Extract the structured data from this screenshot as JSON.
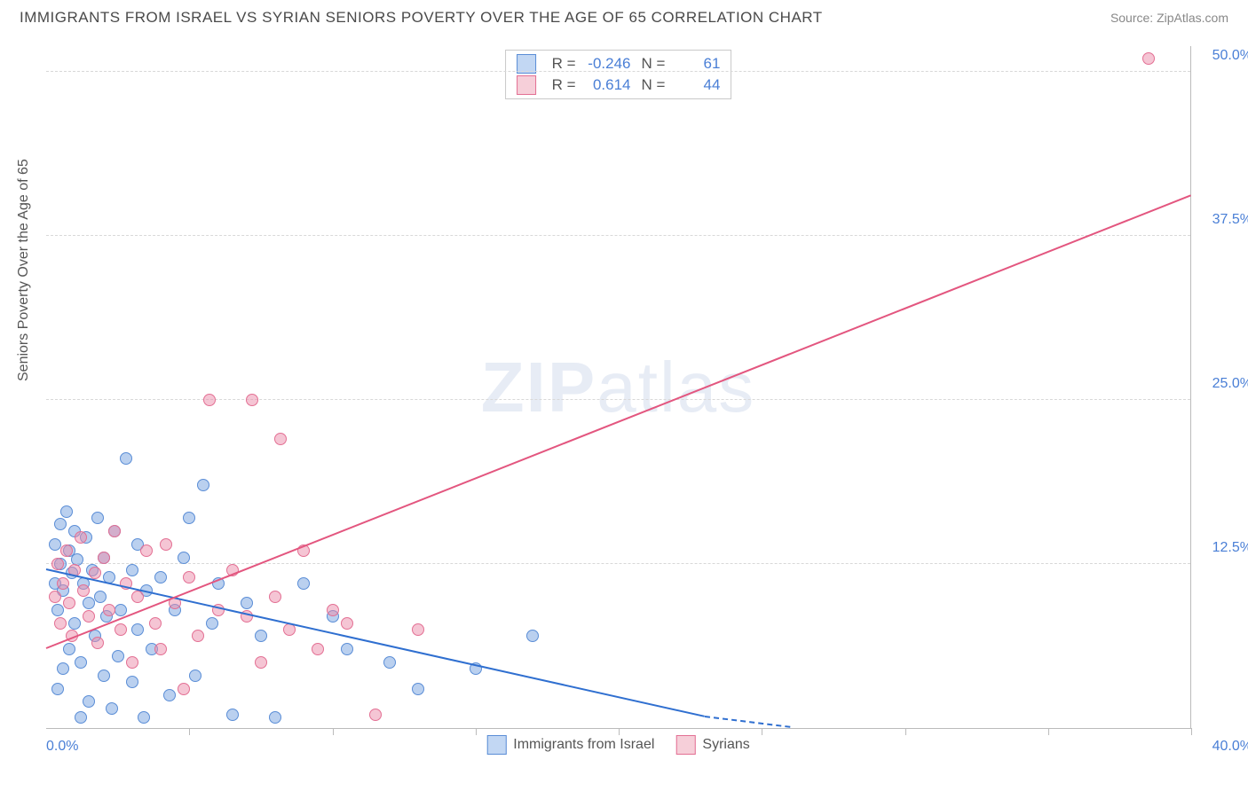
{
  "title": "IMMIGRANTS FROM ISRAEL VS SYRIAN SENIORS POVERTY OVER THE AGE OF 65 CORRELATION CHART",
  "source": "Source: ZipAtlas.com",
  "y_axis_title": "Seniors Poverty Over the Age of 65",
  "watermark_a": "ZIP",
  "watermark_b": "atlas",
  "chart": {
    "background": "#ffffff",
    "grid_color": "#d8d8d8",
    "axis_color": "#bbbbbb",
    "label_color": "#4a7fd6",
    "xlim": [
      0,
      40
    ],
    "ylim": [
      0,
      52
    ],
    "x_min_label": "0.0%",
    "x_max_label": "40.0%",
    "y_ticks": [
      {
        "v": 12.5,
        "label": "12.5%"
      },
      {
        "v": 25.0,
        "label": "25.0%"
      },
      {
        "v": 37.5,
        "label": "37.5%"
      },
      {
        "v": 50.0,
        "label": "50.0%"
      }
    ],
    "x_tick_positions": [
      5,
      10,
      15,
      20,
      25,
      30,
      35,
      40
    ],
    "point_radius": 7
  },
  "series": [
    {
      "name": "Immigrants from Israel",
      "swatch_fill": "#c2d7f3",
      "swatch_border": "#5a8dd6",
      "point_fill": "rgba(130,170,225,0.55)",
      "point_border": "#5a8dd6",
      "line_color": "#2f6fd0",
      "R": "-0.246",
      "N": "61",
      "trend": {
        "x1": 0,
        "y1": 12.0,
        "x2": 23,
        "y2": 0.8,
        "dash_to_x": 26
      },
      "points": [
        [
          0.3,
          11.0
        ],
        [
          0.3,
          14.0
        ],
        [
          0.4,
          9.0
        ],
        [
          0.4,
          3.0
        ],
        [
          0.5,
          15.5
        ],
        [
          0.5,
          12.5
        ],
        [
          0.6,
          4.5
        ],
        [
          0.6,
          10.5
        ],
        [
          0.7,
          16.5
        ],
        [
          0.8,
          13.5
        ],
        [
          0.8,
          6.0
        ],
        [
          0.9,
          11.8
        ],
        [
          1.0,
          8.0
        ],
        [
          1.0,
          15.0
        ],
        [
          1.1,
          12.8
        ],
        [
          1.2,
          0.8
        ],
        [
          1.2,
          5.0
        ],
        [
          1.3,
          11.0
        ],
        [
          1.4,
          14.5
        ],
        [
          1.5,
          9.5
        ],
        [
          1.5,
          2.0
        ],
        [
          1.6,
          12.0
        ],
        [
          1.7,
          7.0
        ],
        [
          1.8,
          16.0
        ],
        [
          1.9,
          10.0
        ],
        [
          2.0,
          4.0
        ],
        [
          2.0,
          13.0
        ],
        [
          2.1,
          8.5
        ],
        [
          2.2,
          11.5
        ],
        [
          2.3,
          1.5
        ],
        [
          2.4,
          15.0
        ],
        [
          2.5,
          5.5
        ],
        [
          2.6,
          9.0
        ],
        [
          2.8,
          20.5
        ],
        [
          3.0,
          12.0
        ],
        [
          3.0,
          3.5
        ],
        [
          3.2,
          7.5
        ],
        [
          3.2,
          14.0
        ],
        [
          3.4,
          0.8
        ],
        [
          3.5,
          10.5
        ],
        [
          3.7,
          6.0
        ],
        [
          4.0,
          11.5
        ],
        [
          4.3,
          2.5
        ],
        [
          4.5,
          9.0
        ],
        [
          4.8,
          13.0
        ],
        [
          5.0,
          16.0
        ],
        [
          5.2,
          4.0
        ],
        [
          5.5,
          18.5
        ],
        [
          5.8,
          8.0
        ],
        [
          6.0,
          11.0
        ],
        [
          6.5,
          1.0
        ],
        [
          7.0,
          9.5
        ],
        [
          7.5,
          7.0
        ],
        [
          8.0,
          0.8
        ],
        [
          9.0,
          11.0
        ],
        [
          10.0,
          8.5
        ],
        [
          10.5,
          6.0
        ],
        [
          12.0,
          5.0
        ],
        [
          13.0,
          3.0
        ],
        [
          15.0,
          4.5
        ],
        [
          17.0,
          7.0
        ]
      ]
    },
    {
      "name": "Syrians",
      "swatch_fill": "#f6cfd9",
      "swatch_border": "#e36f93",
      "point_fill": "rgba(235,140,170,0.50)",
      "point_border": "#e36f93",
      "line_color": "#e3567f",
      "R": "0.614",
      "N": "44",
      "trend": {
        "x1": 0,
        "y1": 6.0,
        "x2": 40,
        "y2": 40.5
      },
      "points": [
        [
          0.3,
          10.0
        ],
        [
          0.4,
          12.5
        ],
        [
          0.5,
          8.0
        ],
        [
          0.6,
          11.0
        ],
        [
          0.7,
          13.5
        ],
        [
          0.8,
          9.5
        ],
        [
          0.9,
          7.0
        ],
        [
          1.0,
          12.0
        ],
        [
          1.2,
          14.5
        ],
        [
          1.3,
          10.5
        ],
        [
          1.5,
          8.5
        ],
        [
          1.7,
          11.8
        ],
        [
          1.8,
          6.5
        ],
        [
          2.0,
          13.0
        ],
        [
          2.2,
          9.0
        ],
        [
          2.4,
          15.0
        ],
        [
          2.6,
          7.5
        ],
        [
          2.8,
          11.0
        ],
        [
          3.0,
          5.0
        ],
        [
          3.2,
          10.0
        ],
        [
          3.5,
          13.5
        ],
        [
          3.8,
          8.0
        ],
        [
          4.0,
          6.0
        ],
        [
          4.2,
          14.0
        ],
        [
          4.5,
          9.5
        ],
        [
          4.8,
          3.0
        ],
        [
          5.0,
          11.5
        ],
        [
          5.3,
          7.0
        ],
        [
          5.7,
          25.0
        ],
        [
          6.0,
          9.0
        ],
        [
          6.5,
          12.0
        ],
        [
          7.0,
          8.5
        ],
        [
          7.2,
          25.0
        ],
        [
          7.5,
          5.0
        ],
        [
          8.0,
          10.0
        ],
        [
          8.2,
          22.0
        ],
        [
          8.5,
          7.5
        ],
        [
          9.0,
          13.5
        ],
        [
          9.5,
          6.0
        ],
        [
          10.0,
          9.0
        ],
        [
          10.5,
          8.0
        ],
        [
          11.5,
          1.0
        ],
        [
          13.0,
          7.5
        ],
        [
          38.5,
          51.0
        ]
      ]
    }
  ],
  "legend_top_labels": {
    "R": "R =",
    "N": "N ="
  },
  "legend_bottom": [
    {
      "series": 0
    },
    {
      "series": 1
    }
  ]
}
